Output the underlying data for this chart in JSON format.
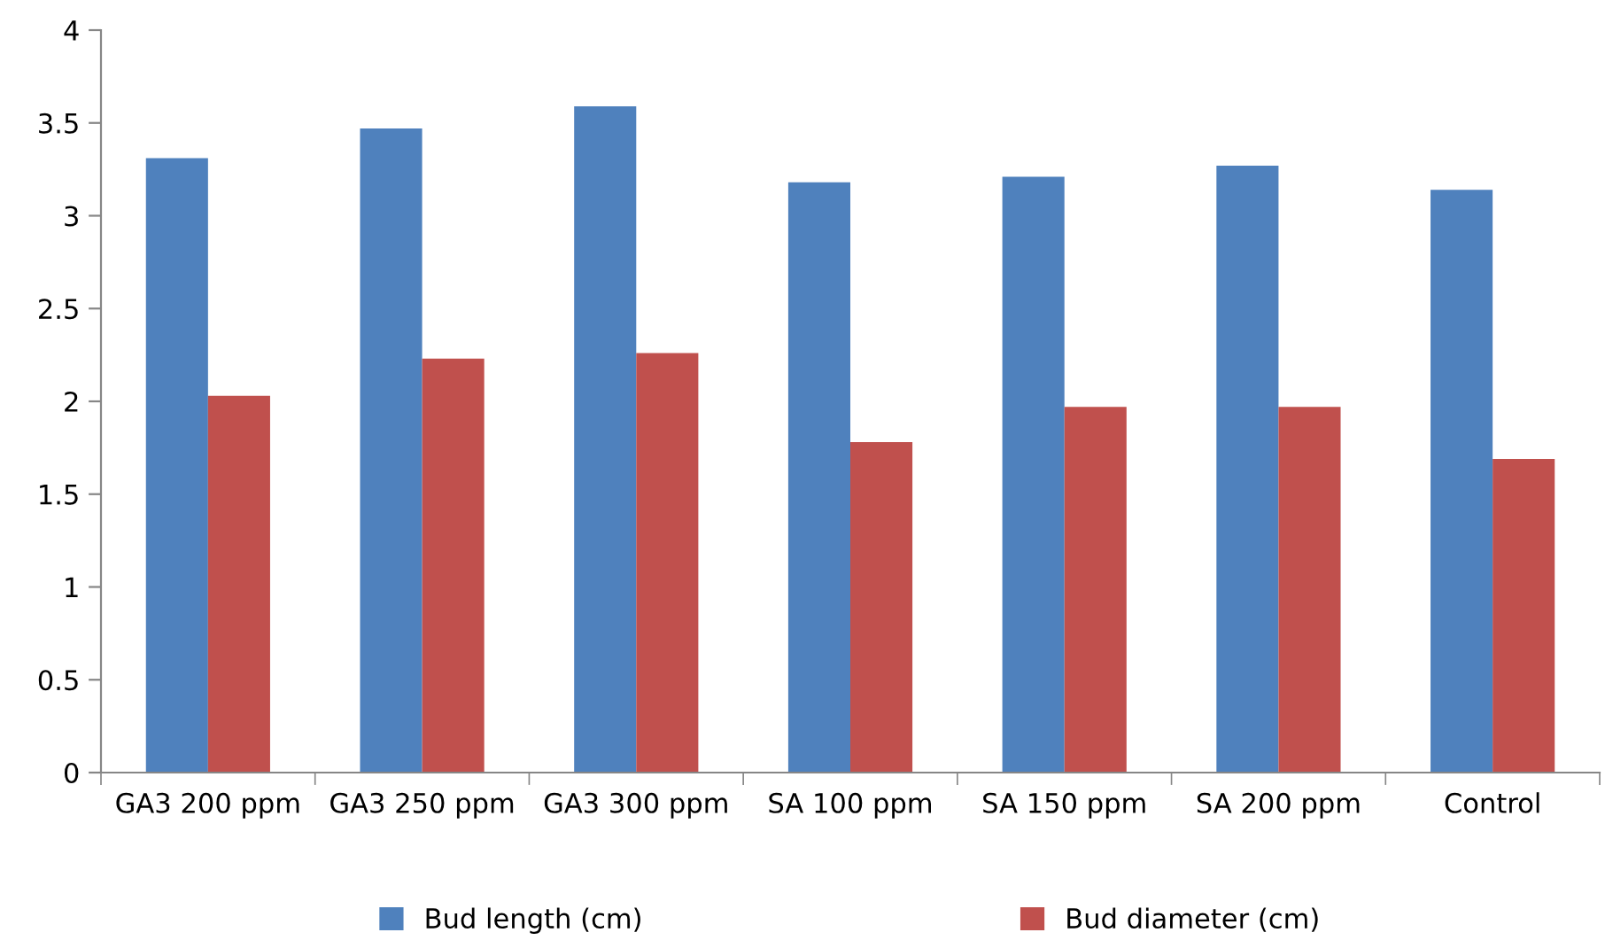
{
  "chart_data": {
    "type": "bar",
    "categories": [
      "GA3 200 ppm",
      "GA3 250 ppm",
      "GA3 300 ppm",
      "SA 100 ppm",
      "SA 150 ppm",
      "SA 200 ppm",
      "Control"
    ],
    "series": [
      {
        "name": "Bud length (cm)",
        "color": "#4f81bd",
        "values": [
          3.31,
          3.47,
          3.59,
          3.18,
          3.21,
          3.27,
          3.14
        ]
      },
      {
        "name": "Bud diameter (cm)",
        "color": "#c0504d",
        "values": [
          2.03,
          2.23,
          2.26,
          1.78,
          1.97,
          1.97,
          1.69
        ]
      }
    ],
    "ylim": [
      0,
      4
    ],
    "yticks": [
      0,
      0.5,
      1,
      1.5,
      2,
      2.5,
      3,
      3.5,
      4
    ],
    "grid": false,
    "legend": "bottom"
  }
}
